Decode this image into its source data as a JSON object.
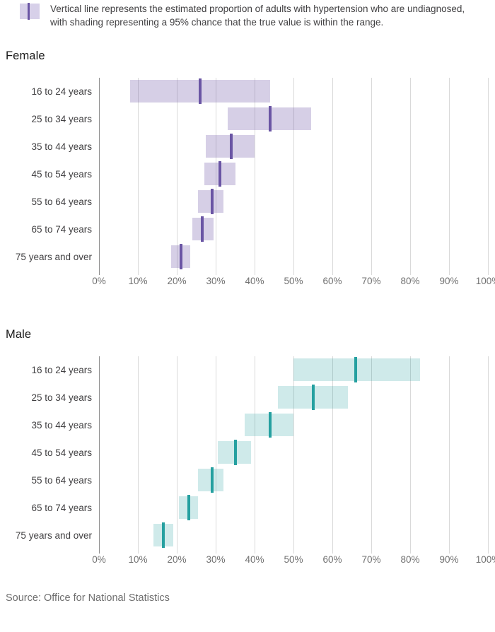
{
  "legend": {
    "text": "Vertical line represents the estimated proportion of adults with hypertension who are undiagnosed, with shading representing a 95% chance that the true value is within the range.",
    "swatch_fill": "#d7d0e9",
    "swatch_line_color": "#6a55a4"
  },
  "source_note": "Source: Office for National Statistics",
  "chart_data": [
    {
      "type": "bar",
      "subtype": "horizontal-range-with-estimate",
      "title": "Female",
      "categories": [
        "16 to 24 years",
        "25 to 34 years",
        "35 to 44 years",
        "45 to 54 years",
        "55 to 64 years",
        "65 to 74 years",
        "75 years and over"
      ],
      "series": [
        {
          "name": "95% range low (%)",
          "values": [
            8,
            33,
            27.5,
            27,
            25.5,
            24,
            18.5
          ]
        },
        {
          "name": "95% range high (%)",
          "values": [
            44,
            54.5,
            40,
            35,
            32,
            29.5,
            23.5
          ]
        },
        {
          "name": "estimate (%)",
          "values": [
            26,
            44,
            34,
            31,
            29,
            26.5,
            21
          ]
        }
      ],
      "xlabel": "",
      "ylabel": "",
      "xlim": [
        0,
        100
      ],
      "x_tick_labels": [
        "0%",
        "10%",
        "20%",
        "30%",
        "40%",
        "50%",
        "60%",
        "70%",
        "80%",
        "90%",
        "100%"
      ],
      "grid": "vertical",
      "bar_fill": "rgba(107,82,164,0.28)",
      "estimate_line_color": "#6a55a4"
    },
    {
      "type": "bar",
      "subtype": "horizontal-range-with-estimate",
      "title": "Male",
      "categories": [
        "16 to 24 years",
        "25 to 34 years",
        "35 to 44 years",
        "45 to 54 years",
        "55 to 64 years",
        "65 to 74 years",
        "75 years and over"
      ],
      "series": [
        {
          "name": "95% range low (%)",
          "values": [
            50,
            46,
            37.5,
            30.5,
            25.5,
            20.5,
            14
          ]
        },
        {
          "name": "95% range high (%)",
          "values": [
            82.5,
            64,
            50,
            39,
            32,
            25.5,
            19
          ]
        },
        {
          "name": "estimate (%)",
          "values": [
            66,
            55,
            44,
            35,
            29,
            23,
            16.5
          ]
        }
      ],
      "xlabel": "",
      "ylabel": "",
      "xlim": [
        0,
        100
      ],
      "x_tick_labels": [
        "0%",
        "10%",
        "20%",
        "30%",
        "40%",
        "50%",
        "60%",
        "70%",
        "80%",
        "90%",
        "100%"
      ],
      "grid": "vertical",
      "bar_fill": "rgba(37,160,160,0.22)",
      "estimate_line_color": "#25a0a0"
    }
  ]
}
